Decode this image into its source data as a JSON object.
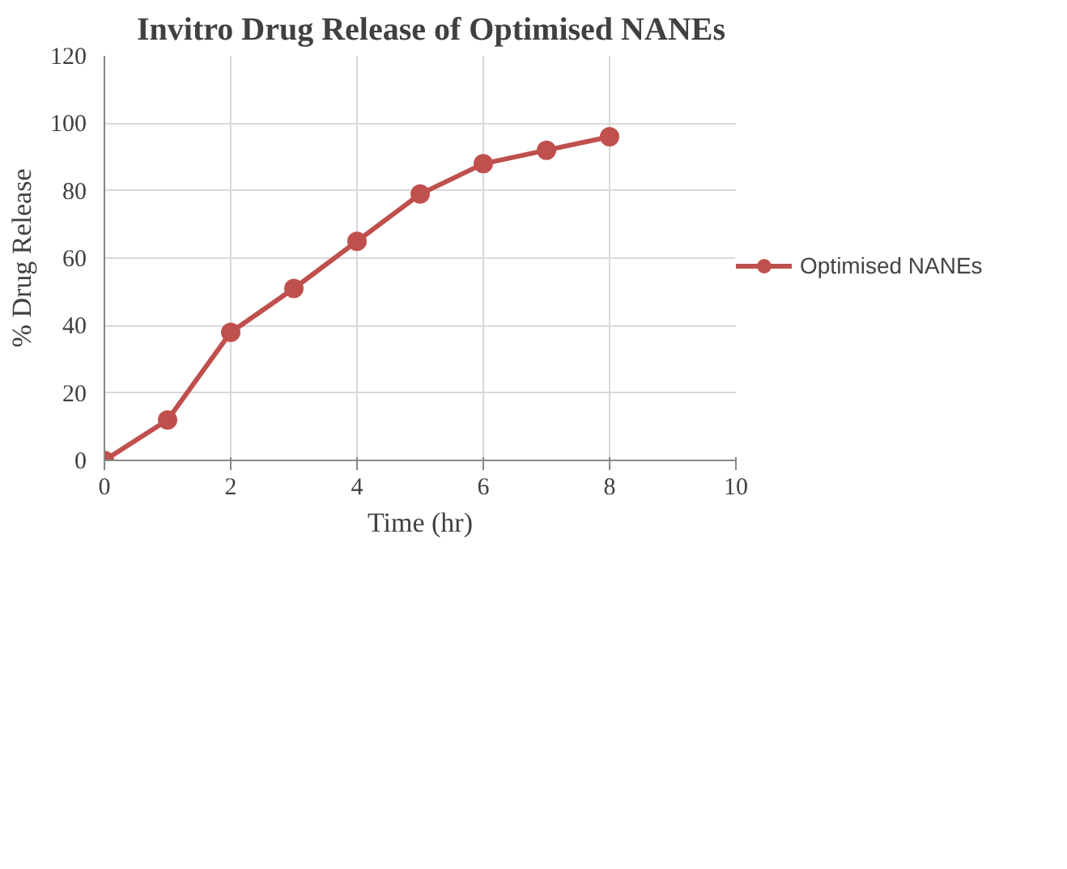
{
  "chart_data": {
    "type": "line",
    "title": "Invitro Drug Release of Optimised NANEs",
    "xlabel": "Time (hr)",
    "ylabel": "% Drug Release",
    "x": [
      0,
      1,
      2,
      3,
      4,
      5,
      6,
      7,
      8
    ],
    "series": [
      {
        "name": "Optimised NANEs",
        "color": "#c0504d",
        "values": [
          0,
          12,
          38,
          51,
          65,
          79,
          88,
          92,
          96
        ]
      }
    ],
    "xlim": [
      0,
      10
    ],
    "xticks": [
      0,
      2,
      4,
      6,
      8,
      10
    ],
    "ylim": [
      0,
      120
    ],
    "yticks": [
      0,
      20,
      40,
      60,
      80,
      100,
      120
    ],
    "grid": true,
    "legend": "right",
    "marker": "circle",
    "line_style": "solid"
  }
}
